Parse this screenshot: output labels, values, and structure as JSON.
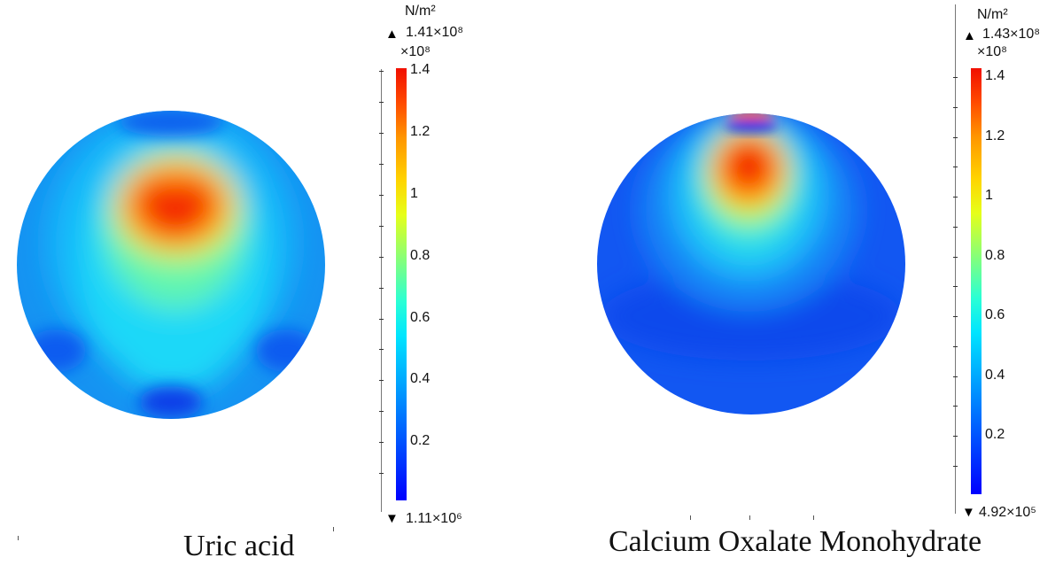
{
  "chart_data": [
    {
      "type": "heatmap",
      "title": "Uric acid",
      "colorbar": {
        "unit": "N/m²",
        "max_label": "1.41×10⁸",
        "min_label": "1.11×10⁶",
        "multiplier": "×10⁸",
        "range": [
          0.0111,
          1.41
        ],
        "ticks": [
          0.2,
          0.4,
          0.6,
          0.8,
          1,
          1.2,
          1.4
        ],
        "tick_labels": [
          "0.2",
          "0.4",
          "0.6",
          "0.8",
          "1",
          "1.2",
          "1.4"
        ],
        "colormap": [
          "#0000ff",
          "#00aaff",
          "#00e5ff",
          "#88ff77",
          "#e6ff19",
          "#ff9500",
          "#f10f00"
        ]
      }
    },
    {
      "type": "heatmap",
      "title": "Calcium Oxalate Monohydrate",
      "colorbar": {
        "unit": "N/m²",
        "max_label": "1.43×10⁸",
        "min_label": "4.92×10⁵",
        "multiplier": "×10⁸",
        "range": [
          0.00492,
          1.43
        ],
        "ticks": [
          0.2,
          0.4,
          0.6,
          0.8,
          1,
          1.2,
          1.4
        ],
        "tick_labels": [
          "0.2",
          "0.4",
          "0.6",
          "0.8",
          "1",
          "1.2",
          "1.4"
        ],
        "colormap": [
          "#0000ff",
          "#00aaff",
          "#00e5ff",
          "#88ff77",
          "#e6ff19",
          "#ff9500",
          "#f10f00"
        ]
      }
    }
  ]
}
